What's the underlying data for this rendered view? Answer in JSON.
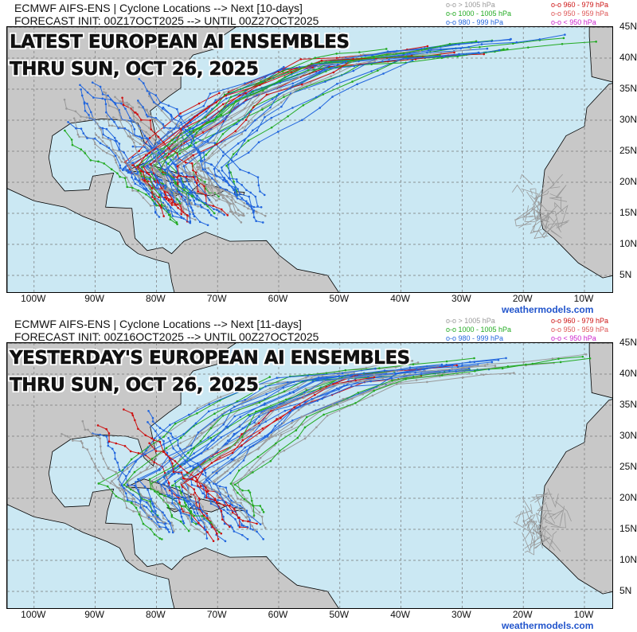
{
  "panels": [
    {
      "header_line1": "ECMWF AIFS-ENS | Cyclone Locations --> Next [10-days]",
      "header_line2": "FORECAST INIT: 00Z17OCT2025 --> UNTIL 00Z27OCT2025",
      "overlay_line1": "LATEST EUROPEAN AI ENSEMBLES",
      "overlay_line2": "THRU SUN, OCT 26, 2025"
    },
    {
      "header_line1": "ECMWF AIFS-ENS | Cyclone Locations --> Next [11-days]",
      "header_line2": "FORECAST INIT: 00Z16OCT2025 --> UNTIL 00Z27OCT2025",
      "overlay_line1": "YESTERDAY'S EUROPEAN AI ENSEMBLES",
      "overlay_line2": "THRU SUN, OCT 26, 2025"
    }
  ],
  "legend": [
    {
      "label": "o-o > 1005 hPa",
      "color": "#999999"
    },
    {
      "label": "o-o 1000 - 1005 hPa",
      "color": "#22aa22"
    },
    {
      "label": "o-o 980 - 999 hPa",
      "color": "#2266dd"
    },
    {
      "label": "o-o 960 - 979 hPa",
      "color": "#cc1111"
    },
    {
      "label": "o-o 950 - 959 hPa",
      "color": "#dd5555"
    },
    {
      "label": "o-o < 950 hPa",
      "color": "#cc22cc"
    }
  ],
  "lon_labels": [
    "100W",
    "90W",
    "80W",
    "70W",
    "60W",
    "50W",
    "40W",
    "30W",
    "20W",
    "10W"
  ],
  "lat_labels": [
    "45N",
    "40N",
    "35N",
    "30N",
    "25N",
    "20N",
    "15N",
    "10N",
    "5N"
  ],
  "credit": "weathermodels.com",
  "colors": {
    "ocean": "#cbe8f3",
    "land": "#c8c8c8"
  }
}
